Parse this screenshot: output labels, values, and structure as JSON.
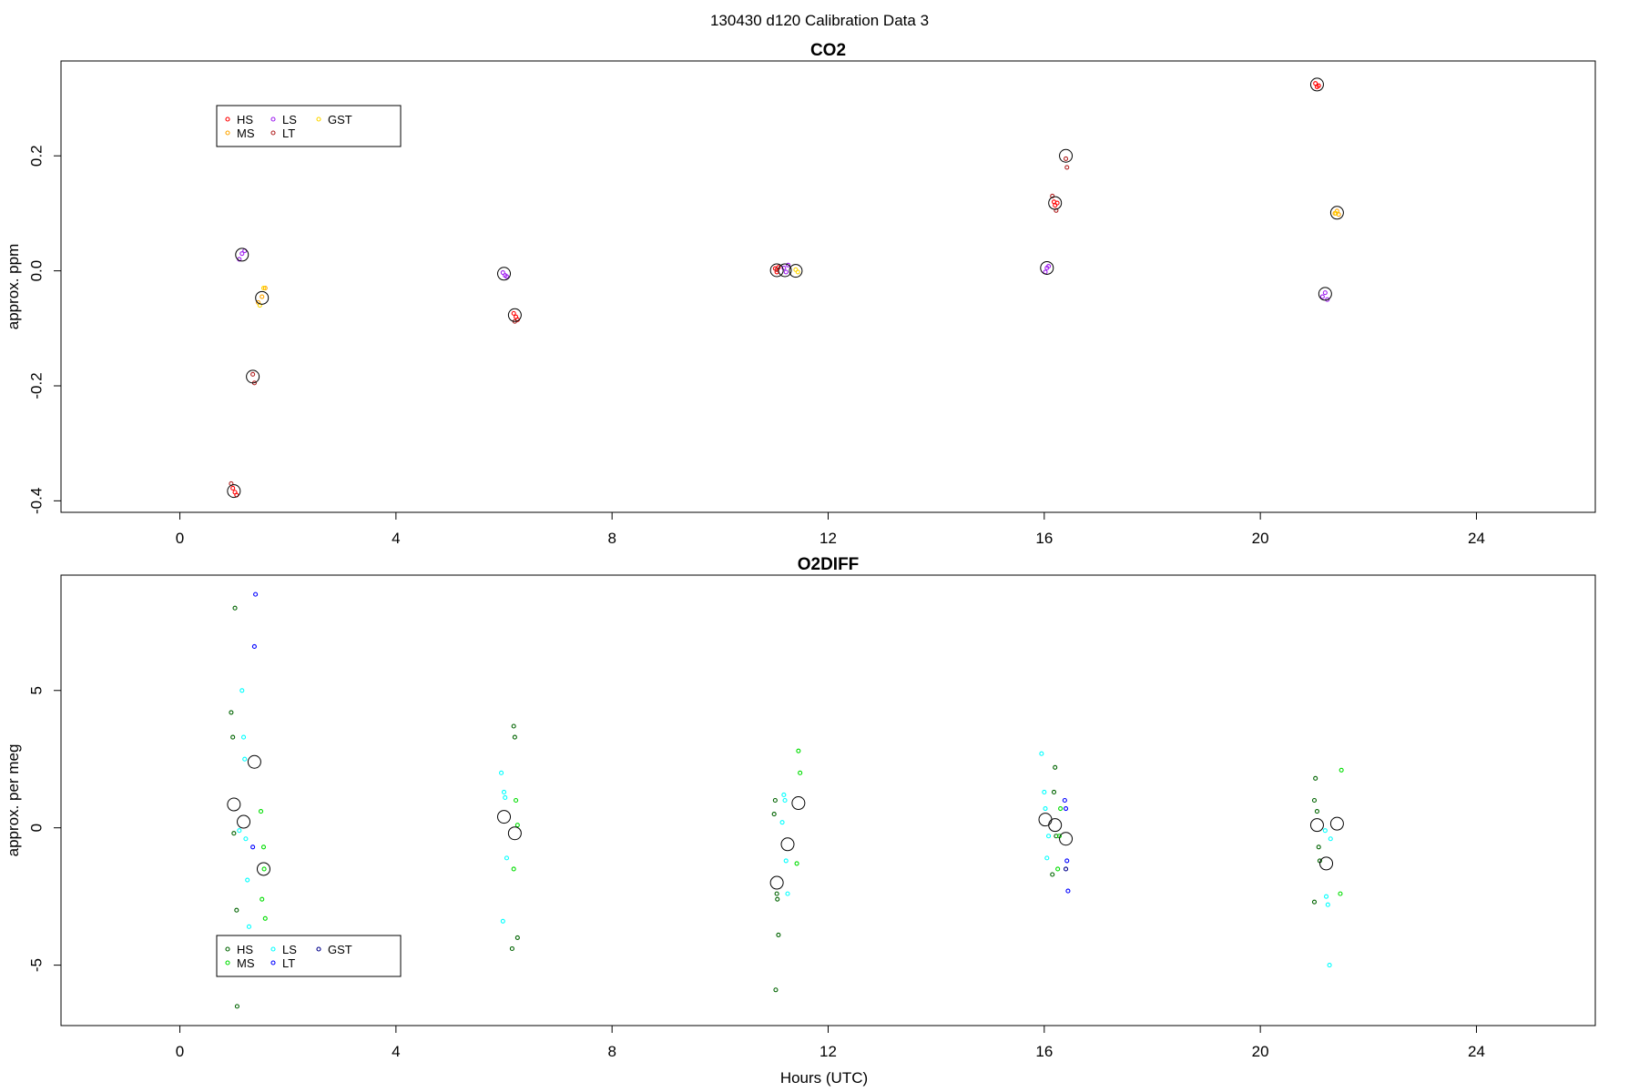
{
  "figure": {
    "title": "130430   d120   Calibration Data 3",
    "xlabel": "Hours (UTC)"
  },
  "chart_data": [
    {
      "type": "scatter",
      "title": "CO2",
      "ylabel": "approx. ppm",
      "xlim": [
        -2.2,
        26.2
      ],
      "ylim": [
        -0.42,
        0.365
      ],
      "x_ticks": [
        0,
        4,
        8,
        12,
        16,
        20,
        24
      ],
      "y_ticks": [
        -0.4,
        -0.2,
        0.0,
        0.2
      ],
      "y_tick_labels": [
        "-0.4",
        "-0.2",
        "0.0",
        "0.2"
      ],
      "legend": {
        "position": "top-left",
        "entries": [
          {
            "name": "HS",
            "color": "#ff0000"
          },
          {
            "name": "MS",
            "color": "#ffa500"
          },
          {
            "name": "LS",
            "color": "#a020f0"
          },
          {
            "name": "LT",
            "color": "#b22222"
          },
          {
            "name": "GST",
            "color": "#ffd700"
          }
        ]
      },
      "series": [
        {
          "name": "HS",
          "color": "#ff0000",
          "x": [
            0.98,
            1.02,
            1.05,
            6.18,
            6.22,
            6.25,
            11.02,
            11.05,
            11.08,
            16.18,
            16.2,
            16.24,
            21.02,
            21.05,
            21.08
          ],
          "y": [
            -0.378,
            -0.385,
            -0.39,
            -0.074,
            -0.08,
            -0.085,
            0.004,
            -0.002,
            0.006,
            0.12,
            0.114,
            0.118,
            0.326,
            0.32,
            0.322
          ]
        },
        {
          "name": "MS",
          "color": "#ffa500",
          "x": [
            1.45,
            1.52,
            1.58,
            21.38,
            21.42,
            21.45
          ],
          "y": [
            -0.055,
            -0.045,
            -0.03,
            0.1,
            0.104,
            0.098
          ]
        },
        {
          "name": "LS",
          "color": "#a020f0",
          "x": [
            1.1,
            1.15,
            1.2,
            5.98,
            6.02,
            6.05,
            11.18,
            11.22,
            11.26,
            16.02,
            16.05,
            16.08,
            21.15,
            21.2,
            21.24
          ],
          "y": [
            0.02,
            0.03,
            0.035,
            -0.003,
            -0.008,
            -0.01,
            0.005,
            -0.002,
            0.01,
            -0.002,
            0.005,
            0.008,
            -0.045,
            -0.038,
            -0.05
          ]
        },
        {
          "name": "LT",
          "color": "#b22222",
          "x": [
            0.95,
            1.35,
            1.38,
            6.2,
            11.05,
            16.15,
            16.22,
            16.4,
            16.42
          ],
          "y": [
            -0.37,
            -0.18,
            -0.195,
            -0.088,
            0.002,
            0.13,
            0.105,
            0.195,
            0.18
          ]
        },
        {
          "name": "GST",
          "color": "#ffd700",
          "x": [
            1.55,
            1.48,
            11.4,
            11.44,
            21.4
          ],
          "y": [
            -0.03,
            -0.06,
            0.002,
            -0.002,
            0.1
          ]
        },
        {
          "name": "mean",
          "color": "#000000",
          "x": [
            1.0,
            1.15,
            1.35,
            1.52,
            6.0,
            6.2,
            11.05,
            11.2,
            11.4,
            16.05,
            16.2,
            16.4,
            21.05,
            21.2,
            21.42
          ],
          "y": [
            -0.383,
            0.028,
            -0.184,
            -0.047,
            -0.005,
            -0.077,
            0.001,
            0.001,
            0.0,
            0.005,
            0.118,
            0.2,
            0.324,
            -0.04,
            0.101
          ]
        }
      ]
    },
    {
      "type": "scatter",
      "title": "O2DIFF",
      "ylabel": "approx. per meg",
      "xlim": [
        -2.2,
        26.2
      ],
      "ylim": [
        -7.2,
        9.2
      ],
      "x_ticks": [
        0,
        4,
        8,
        12,
        16,
        20,
        24
      ],
      "y_ticks": [
        -5,
        0,
        5
      ],
      "y_tick_labels": [
        "-5",
        "0",
        "5"
      ],
      "legend": {
        "position": "bottom-left",
        "entries": [
          {
            "name": "HS",
            "color": "#006400"
          },
          {
            "name": "MS",
            "color": "#00dd00"
          },
          {
            "name": "LS",
            "color": "#00ffff"
          },
          {
            "name": "LT",
            "color": "#0000ff"
          },
          {
            "name": "GST",
            "color": "#00008b"
          }
        ]
      },
      "series": [
        {
          "name": "HS",
          "color": "#006400",
          "x": [
            0.95,
            0.98,
            1.0,
            1.02,
            1.05,
            1.06,
            6.18,
            6.2,
            6.15,
            6.25,
            11.0,
            11.02,
            11.05,
            11.06,
            11.08,
            11.03,
            16.2,
            16.18,
            16.22,
            16.15,
            21.0,
            21.02,
            21.05,
            21.08,
            21.1,
            21.0
          ],
          "y": [
            4.2,
            3.3,
            -0.2,
            8.0,
            -3.0,
            -6.5,
            3.7,
            3.3,
            -4.4,
            -4.0,
            0.5,
            1.0,
            -2.4,
            -2.6,
            -3.9,
            -5.9,
            2.2,
            1.3,
            -0.3,
            -1.7,
            1.0,
            1.8,
            0.6,
            -0.7,
            -1.2,
            -2.7
          ]
        },
        {
          "name": "MS",
          "color": "#00dd00",
          "x": [
            1.5,
            1.55,
            1.58,
            1.52,
            1.56,
            6.22,
            6.25,
            6.18,
            11.45,
            11.48,
            11.42,
            16.3,
            16.28,
            16.25,
            21.5,
            21.48
          ],
          "y": [
            0.6,
            -0.7,
            -3.3,
            -2.6,
            -1.5,
            1.0,
            0.1,
            -1.5,
            2.8,
            2.0,
            -1.3,
            0.7,
            -0.3,
            -1.5,
            2.1,
            -2.4
          ]
        },
        {
          "name": "LS",
          "color": "#00ffff",
          "x": [
            1.15,
            1.18,
            1.2,
            1.22,
            1.25,
            1.1,
            1.28,
            5.95,
            6.0,
            6.02,
            6.05,
            5.98,
            11.18,
            11.2,
            11.22,
            11.25,
            11.15,
            15.95,
            16.0,
            16.02,
            16.05,
            16.08,
            21.2,
            21.22,
            21.25,
            21.28,
            21.3
          ],
          "y": [
            5.0,
            3.3,
            2.5,
            -0.4,
            -1.9,
            -0.1,
            -3.6,
            2.0,
            1.3,
            1.1,
            -1.1,
            -3.4,
            1.2,
            1.0,
            -1.2,
            -2.4,
            0.2,
            2.7,
            1.3,
            0.7,
            -1.1,
            -0.3,
            -0.1,
            -2.5,
            -2.8,
            -5.0,
            -0.4
          ]
        },
        {
          "name": "LT",
          "color": "#0000ff",
          "x": [
            1.38,
            1.4,
            1.35,
            16.38,
            16.4,
            16.42,
            16.44
          ],
          "y": [
            6.6,
            8.5,
            -0.7,
            1.0,
            0.7,
            -1.2,
            -2.3
          ]
        },
        {
          "name": "GST",
          "color": "#00008b",
          "x": [
            1.32,
            16.4
          ],
          "y": [
            -4.9,
            -1.5
          ]
        },
        {
          "name": "mean",
          "color": "#000000",
          "x": [
            1.0,
            1.18,
            1.38,
            1.55,
            6.0,
            6.2,
            11.05,
            11.25,
            11.45,
            16.02,
            16.2,
            16.4,
            21.05,
            21.22,
            21.42
          ],
          "y": [
            0.85,
            0.22,
            2.4,
            -1.5,
            0.4,
            -0.2,
            -2.0,
            -0.6,
            0.9,
            0.3,
            0.1,
            -0.4,
            0.1,
            -1.3,
            0.15
          ]
        }
      ]
    }
  ]
}
